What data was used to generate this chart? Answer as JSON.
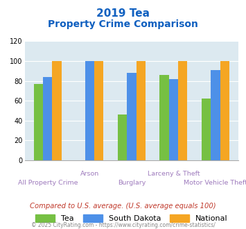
{
  "title_line1": "2019 Tea",
  "title_line2": "Property Crime Comparison",
  "categories": [
    "All Property Crime",
    "Arson",
    "Burglary",
    "Larceny & Theft",
    "Motor Vehicle Theft"
  ],
  "series": {
    "Tea": [
      77,
      0,
      46,
      86,
      62
    ],
    "South Dakota": [
      84,
      100,
      88,
      82,
      91
    ],
    "National": [
      100,
      100,
      100,
      100,
      100
    ]
  },
  "colors": {
    "Tea": "#76c043",
    "South Dakota": "#4d90e8",
    "National": "#f5a623"
  },
  "ylim": [
    0,
    120
  ],
  "yticks": [
    0,
    20,
    40,
    60,
    80,
    100,
    120
  ],
  "title_color": "#1060c0",
  "xlabel_color": "#9e7bbd",
  "note_text": "Compared to U.S. average. (U.S. average equals 100)",
  "note_color": "#c0392b",
  "footer_text": "© 2025 CityRating.com - https://www.cityrating.com/crime-statistics/",
  "footer_color": "#888888",
  "plot_bg_color": "#dce9f0",
  "grid_color": "#ffffff",
  "bar_width": 0.22,
  "legend_labels": [
    "Tea",
    "South Dakota",
    "National"
  ],
  "top_labels": [
    "Arson",
    "Larceny & Theft"
  ],
  "bottom_labels": [
    "All Property Crime",
    "Burglary",
    "Motor Vehicle Theft"
  ]
}
